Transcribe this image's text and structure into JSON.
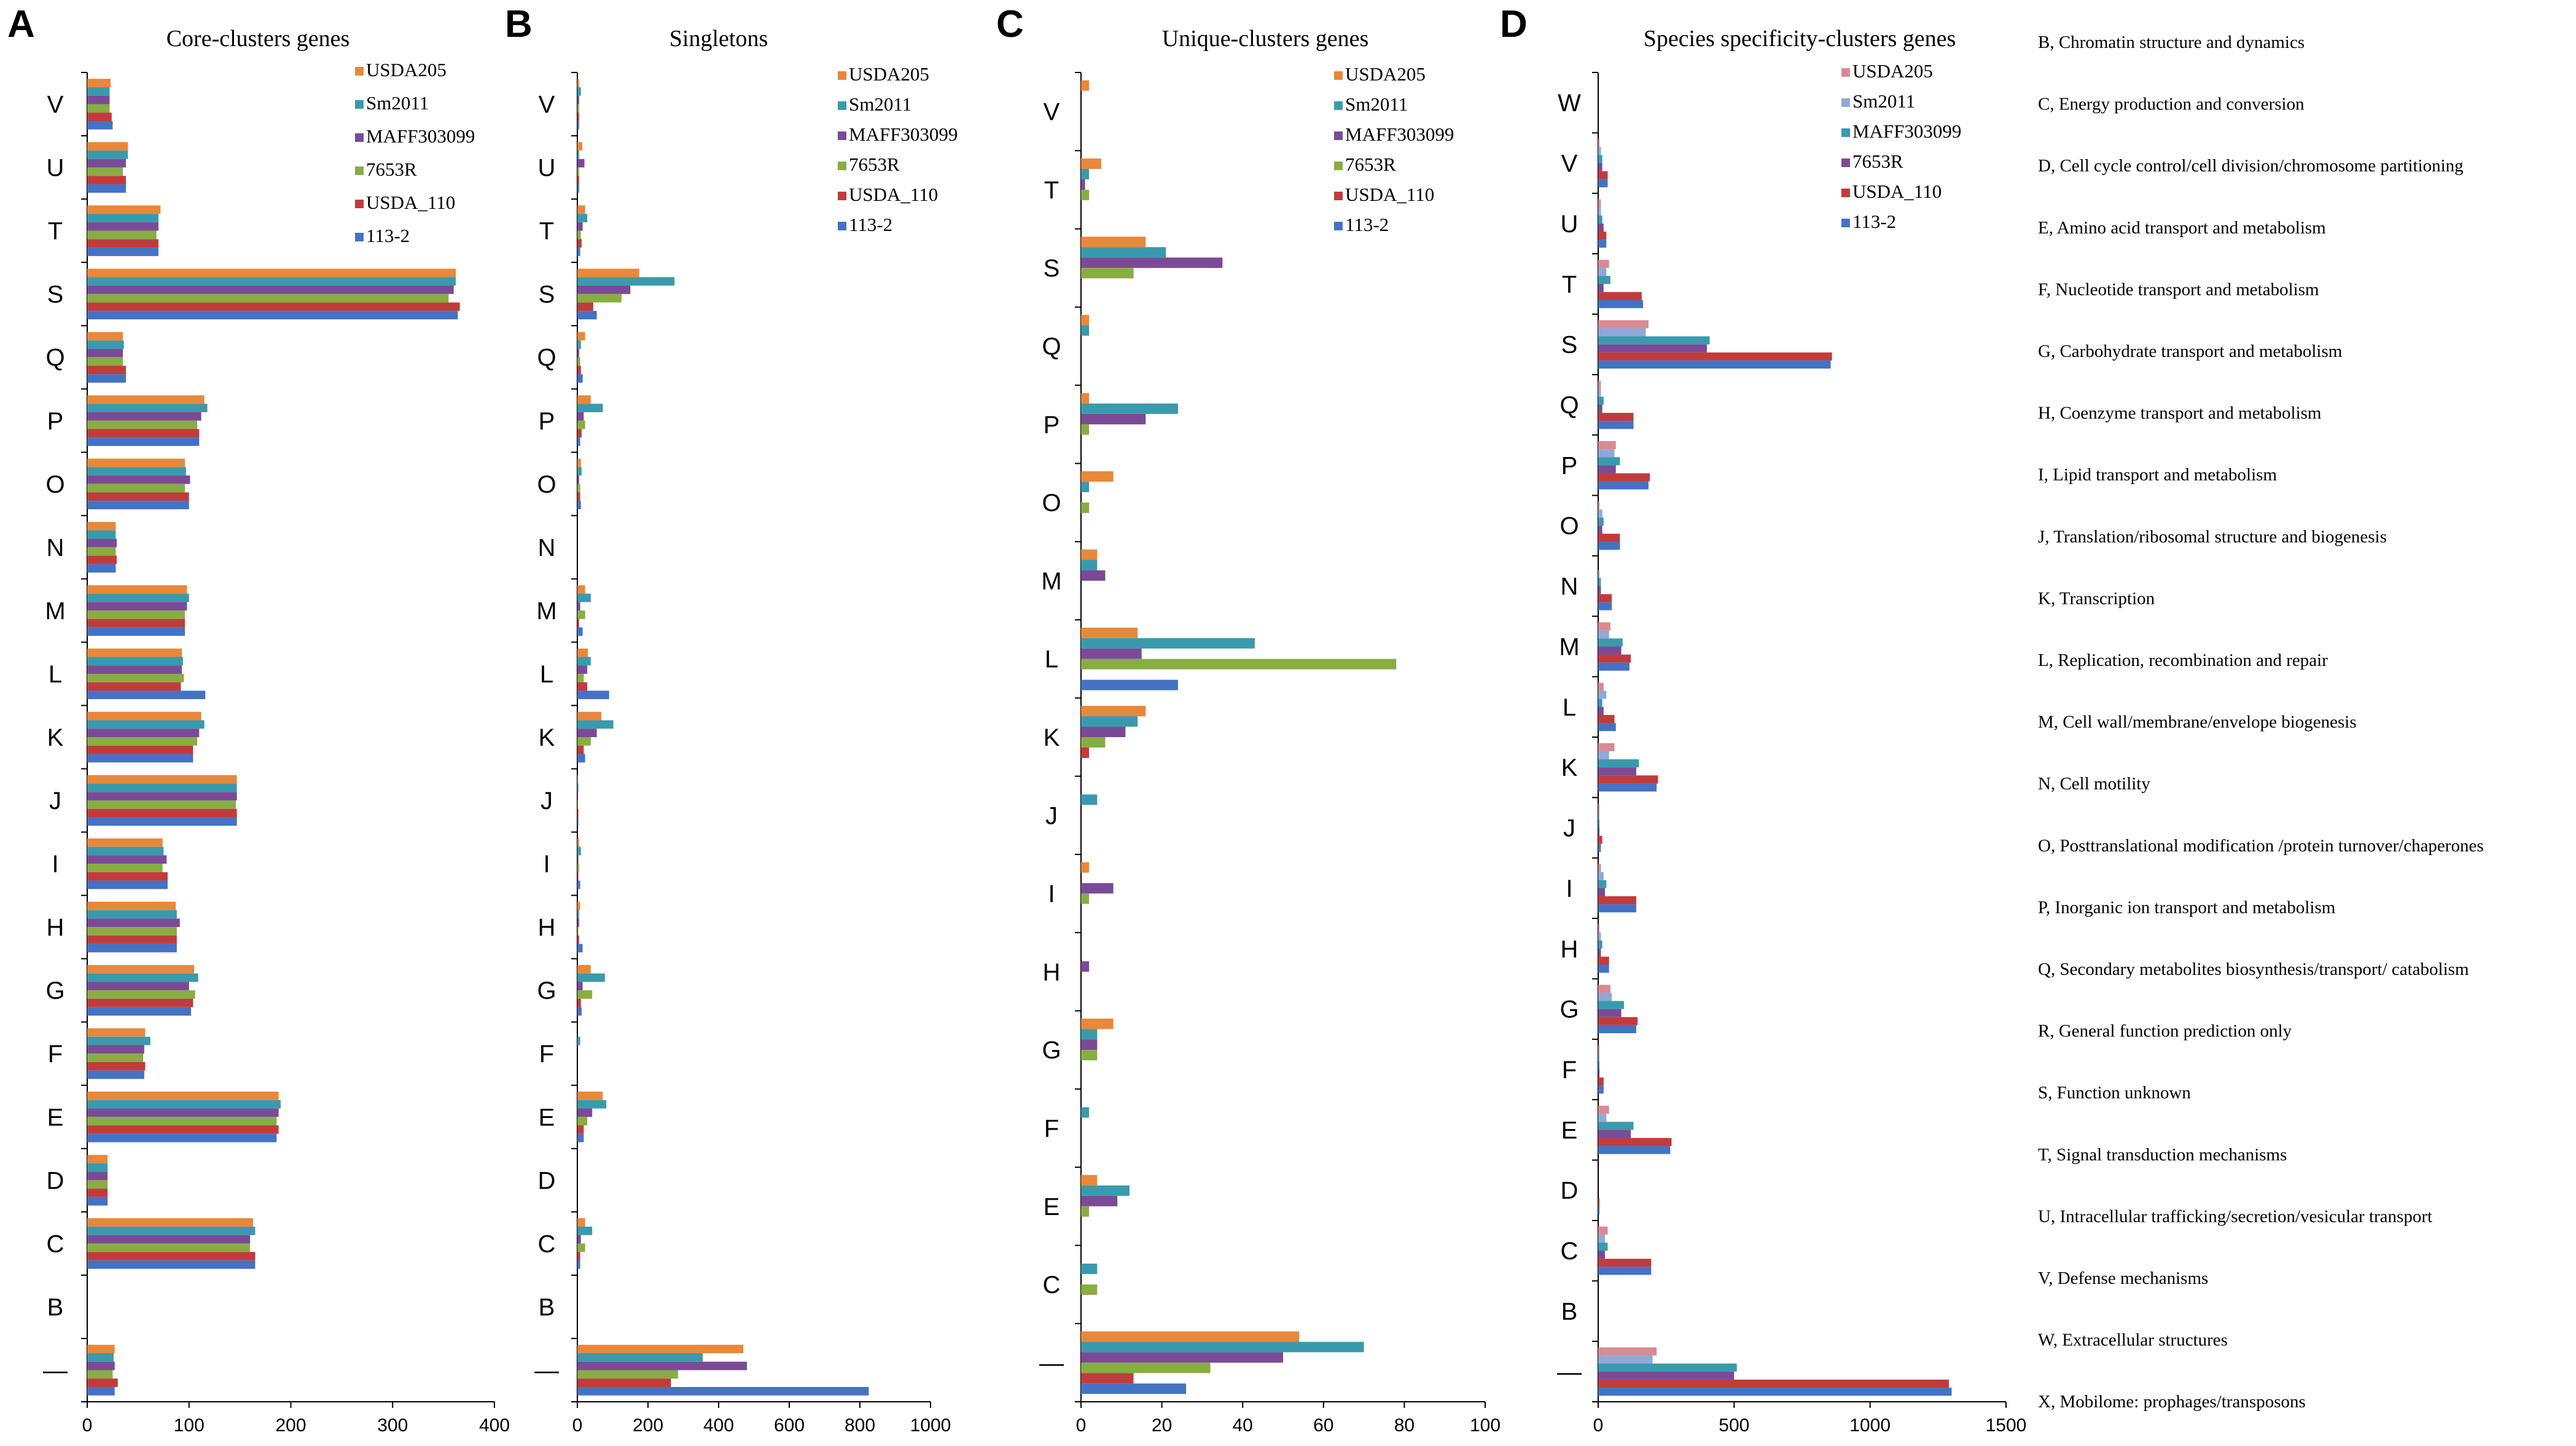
{
  "chart_data": [
    {
      "type": "bar",
      "orientation": "horizontal",
      "panel": "A",
      "title": "Core-clusters genes",
      "categories": [
        "V",
        "U",
        "T",
        "S",
        "Q",
        "P",
        "O",
        "N",
        "M",
        "L",
        "K",
        "J",
        "I",
        "H",
        "G",
        "F",
        "E",
        "D",
        "C",
        "B",
        "—"
      ],
      "xlim": [
        0,
        400
      ],
      "xticks": [
        0,
        100,
        200,
        300,
        400
      ],
      "series": [
        {
          "name": "USDA205",
          "color": "#e8883a",
          "values": [
            23,
            40,
            72,
            362,
            35,
            115,
            96,
            28,
            98,
            93,
            112,
            147,
            74,
            87,
            105,
            57,
            188,
            20,
            163,
            0,
            27
          ]
        },
        {
          "name": "Sm2011",
          "color": "#3a9aad",
          "values": [
            22,
            40,
            70,
            362,
            36,
            118,
            97,
            28,
            100,
            94,
            115,
            147,
            75,
            88,
            109,
            62,
            190,
            20,
            165,
            0,
            26
          ]
        },
        {
          "name": "MAFF303099",
          "color": "#7b4a97",
          "values": [
            22,
            38,
            70,
            360,
            35,
            112,
            101,
            29,
            98,
            93,
            110,
            147,
            78,
            91,
            100,
            56,
            188,
            20,
            160,
            0,
            27
          ]
        },
        {
          "name": "7653R",
          "color": "#88ad43",
          "values": [
            22,
            35,
            68,
            355,
            35,
            108,
            96,
            28,
            96,
            95,
            108,
            146,
            74,
            88,
            106,
            55,
            186,
            20,
            160,
            0,
            25
          ]
        },
        {
          "name": "USDA_110",
          "color": "#c23b3b",
          "values": [
            24,
            38,
            70,
            366,
            38,
            110,
            100,
            29,
            96,
            92,
            104,
            147,
            79,
            88,
            104,
            57,
            188,
            20,
            165,
            0,
            30
          ]
        },
        {
          "name": "113-2",
          "color": "#4472c4",
          "values": [
            25,
            38,
            70,
            364,
            38,
            110,
            100,
            28,
            96,
            116,
            104,
            147,
            79,
            88,
            102,
            56,
            186,
            20,
            165,
            0,
            27
          ]
        }
      ]
    },
    {
      "type": "bar",
      "orientation": "horizontal",
      "panel": "B",
      "title": "Singletons",
      "categories": [
        "V",
        "U",
        "T",
        "S",
        "Q",
        "P",
        "O",
        "N",
        "M",
        "L",
        "K",
        "J",
        "I",
        "H",
        "G",
        "F",
        "E",
        "D",
        "C",
        "B",
        "—"
      ],
      "xlim": [
        0,
        1000
      ],
      "xticks": [
        0,
        200,
        400,
        600,
        800,
        1000
      ],
      "series": [
        {
          "name": "USDA205",
          "color": "#e8883a",
          "values": [
            5,
            14,
            22,
            175,
            22,
            38,
            10,
            0,
            22,
            30,
            68,
            2,
            5,
            8,
            38,
            0,
            72,
            0,
            22,
            0,
            470
          ]
        },
        {
          "name": "Sm2011",
          "color": "#3a9aad",
          "values": [
            10,
            5,
            28,
            275,
            10,
            72,
            12,
            0,
            38,
            38,
            102,
            3,
            10,
            5,
            78,
            8,
            82,
            0,
            42,
            0,
            355
          ]
        },
        {
          "name": "MAFF303099",
          "color": "#7b4a97",
          "values": [
            5,
            20,
            15,
            150,
            5,
            18,
            5,
            0,
            8,
            28,
            55,
            2,
            3,
            5,
            15,
            0,
            42,
            0,
            10,
            0,
            480
          ]
        },
        {
          "name": "7653R",
          "color": "#88ad43",
          "values": [
            5,
            5,
            10,
            125,
            8,
            22,
            8,
            0,
            22,
            18,
            38,
            2,
            5,
            3,
            42,
            0,
            28,
            0,
            22,
            0,
            285
          ]
        },
        {
          "name": "USDA_110",
          "color": "#c23b3b",
          "values": [
            5,
            5,
            12,
            45,
            10,
            12,
            8,
            0,
            5,
            28,
            18,
            3,
            3,
            5,
            10,
            0,
            18,
            0,
            8,
            0,
            265
          ]
        },
        {
          "name": "113-2",
          "color": "#4472c4",
          "values": [
            5,
            5,
            8,
            55,
            15,
            8,
            10,
            0,
            15,
            90,
            22,
            3,
            8,
            15,
            12,
            0,
            18,
            0,
            8,
            0,
            825
          ]
        }
      ]
    },
    {
      "type": "bar",
      "orientation": "horizontal",
      "panel": "C",
      "title": "Unique-clusters genes",
      "categories": [
        "V",
        "T",
        "S",
        "Q",
        "P",
        "O",
        "M",
        "L",
        "K",
        "J",
        "I",
        "H",
        "G",
        "F",
        "E",
        "C",
        "—"
      ],
      "xlim": [
        0,
        100
      ],
      "xticks": [
        0,
        20,
        40,
        60,
        80,
        100
      ],
      "series": [
        {
          "name": "USDA205",
          "color": "#e8883a",
          "values": [
            2,
            5,
            16,
            2,
            2,
            8,
            4,
            14,
            16,
            0,
            2,
            0,
            8,
            0,
            4,
            0,
            54
          ]
        },
        {
          "name": "Sm2011",
          "color": "#3a9aad",
          "values": [
            0,
            2,
            21,
            2,
            24,
            2,
            4,
            43,
            14,
            4,
            0,
            0,
            4,
            2,
            12,
            4,
            70
          ]
        },
        {
          "name": "MAFF303099",
          "color": "#7b4a97",
          "values": [
            0,
            1,
            35,
            0,
            16,
            0,
            6,
            15,
            11,
            0,
            8,
            2,
            4,
            0,
            9,
            0,
            50
          ]
        },
        {
          "name": "7653R",
          "color": "#88ad43",
          "values": [
            0,
            2,
            13,
            0,
            2,
            2,
            0,
            78,
            6,
            0,
            2,
            0,
            4,
            0,
            2,
            4,
            32
          ]
        },
        {
          "name": "USDA_110",
          "color": "#c23b3b",
          "values": [
            0,
            0,
            0,
            0,
            0,
            0,
            0,
            0,
            2,
            0,
            0,
            0,
            0,
            0,
            0,
            0,
            13
          ]
        },
        {
          "name": "113-2",
          "color": "#4472c4",
          "values": [
            0,
            0,
            0,
            0,
            0,
            0,
            0,
            24,
            0,
            0,
            0,
            0,
            0,
            0,
            0,
            0,
            26
          ]
        }
      ]
    },
    {
      "type": "bar",
      "orientation": "horizontal",
      "panel": "D",
      "title": "Species specificity-clusters genes",
      "categories": [
        "W",
        "V",
        "U",
        "T",
        "S",
        "Q",
        "P",
        "O",
        "N",
        "M",
        "L",
        "K",
        "J",
        "I",
        "H",
        "G",
        "F",
        "E",
        "D",
        "C",
        "B",
        "—"
      ],
      "xlim": [
        0,
        1500
      ],
      "xticks": [
        0,
        500,
        1000,
        1500
      ],
      "series": [
        {
          "name": "USDA205",
          "color": "#d98a92",
          "values": [
            0,
            5,
            10,
            40,
            185,
            10,
            65,
            5,
            0,
            45,
            20,
            60,
            5,
            10,
            5,
            45,
            5,
            40,
            0,
            35,
            0,
            215
          ]
        },
        {
          "name": "Sm2011",
          "color": "#8fa8d8",
          "values": [
            0,
            10,
            10,
            30,
            175,
            10,
            60,
            15,
            5,
            40,
            30,
            40,
            5,
            20,
            10,
            50,
            5,
            30,
            0,
            25,
            0,
            200
          ]
        },
        {
          "name": "MAFF303099",
          "color": "#3a9aad",
          "values": [
            0,
            15,
            15,
            45,
            410,
            20,
            80,
            20,
            10,
            90,
            15,
            150,
            5,
            30,
            15,
            95,
            5,
            130,
            0,
            35,
            0,
            510
          ]
        },
        {
          "name": "7653R",
          "color": "#7b4a97",
          "values": [
            0,
            15,
            20,
            20,
            400,
            15,
            65,
            15,
            10,
            85,
            20,
            140,
            5,
            25,
            10,
            85,
            5,
            120,
            0,
            25,
            0,
            500
          ]
        },
        {
          "name": "USDA_110",
          "color": "#c23b3b",
          "values": [
            0,
            35,
            30,
            160,
            860,
            130,
            190,
            80,
            50,
            120,
            60,
            220,
            15,
            140,
            40,
            145,
            20,
            270,
            5,
            195,
            0,
            1290
          ]
        },
        {
          "name": "113-2",
          "color": "#4472c4",
          "values": [
            0,
            35,
            30,
            165,
            855,
            130,
            185,
            80,
            50,
            115,
            65,
            215,
            10,
            140,
            40,
            140,
            20,
            265,
            5,
            195,
            0,
            1300
          ]
        }
      ]
    }
  ],
  "panel_letters": {
    "a": "A",
    "b": "B",
    "c": "C",
    "d": "D"
  },
  "cog_legend": [
    "B, Chromatin structure and dynamics",
    "C, Energy production and conversion",
    "D, Cell cycle control/cell division/chromosome partitioning",
    "E, Amino acid transport and metabolism",
    "F, Nucleotide transport and metabolism",
    "G, Carbohydrate transport and metabolism",
    "H, Coenzyme transport and metabolism",
    "I, Lipid transport and metabolism",
    "J, Translation/ribosomal structure and biogenesis",
    "K, Transcription",
    "L, Replication, recombination and repair",
    "M, Cell wall/membrane/envelope biogenesis",
    "N, Cell motility",
    "O, Posttranslational modification /protein turnover/chaperones",
    "P, Inorganic ion transport and metabolism",
    "Q, Secondary  metabolites biosynthesis/transport/ catabolism",
    "R, General function prediction only",
    "S, Function unknown",
    "T, Signal transduction mechanisms",
    "U, Intracellular trafficking/secretion/vesicular transport",
    "V, Defense mechanisms",
    "W, Extracellular structures",
    "X, Mobilome: prophages/transposons"
  ]
}
